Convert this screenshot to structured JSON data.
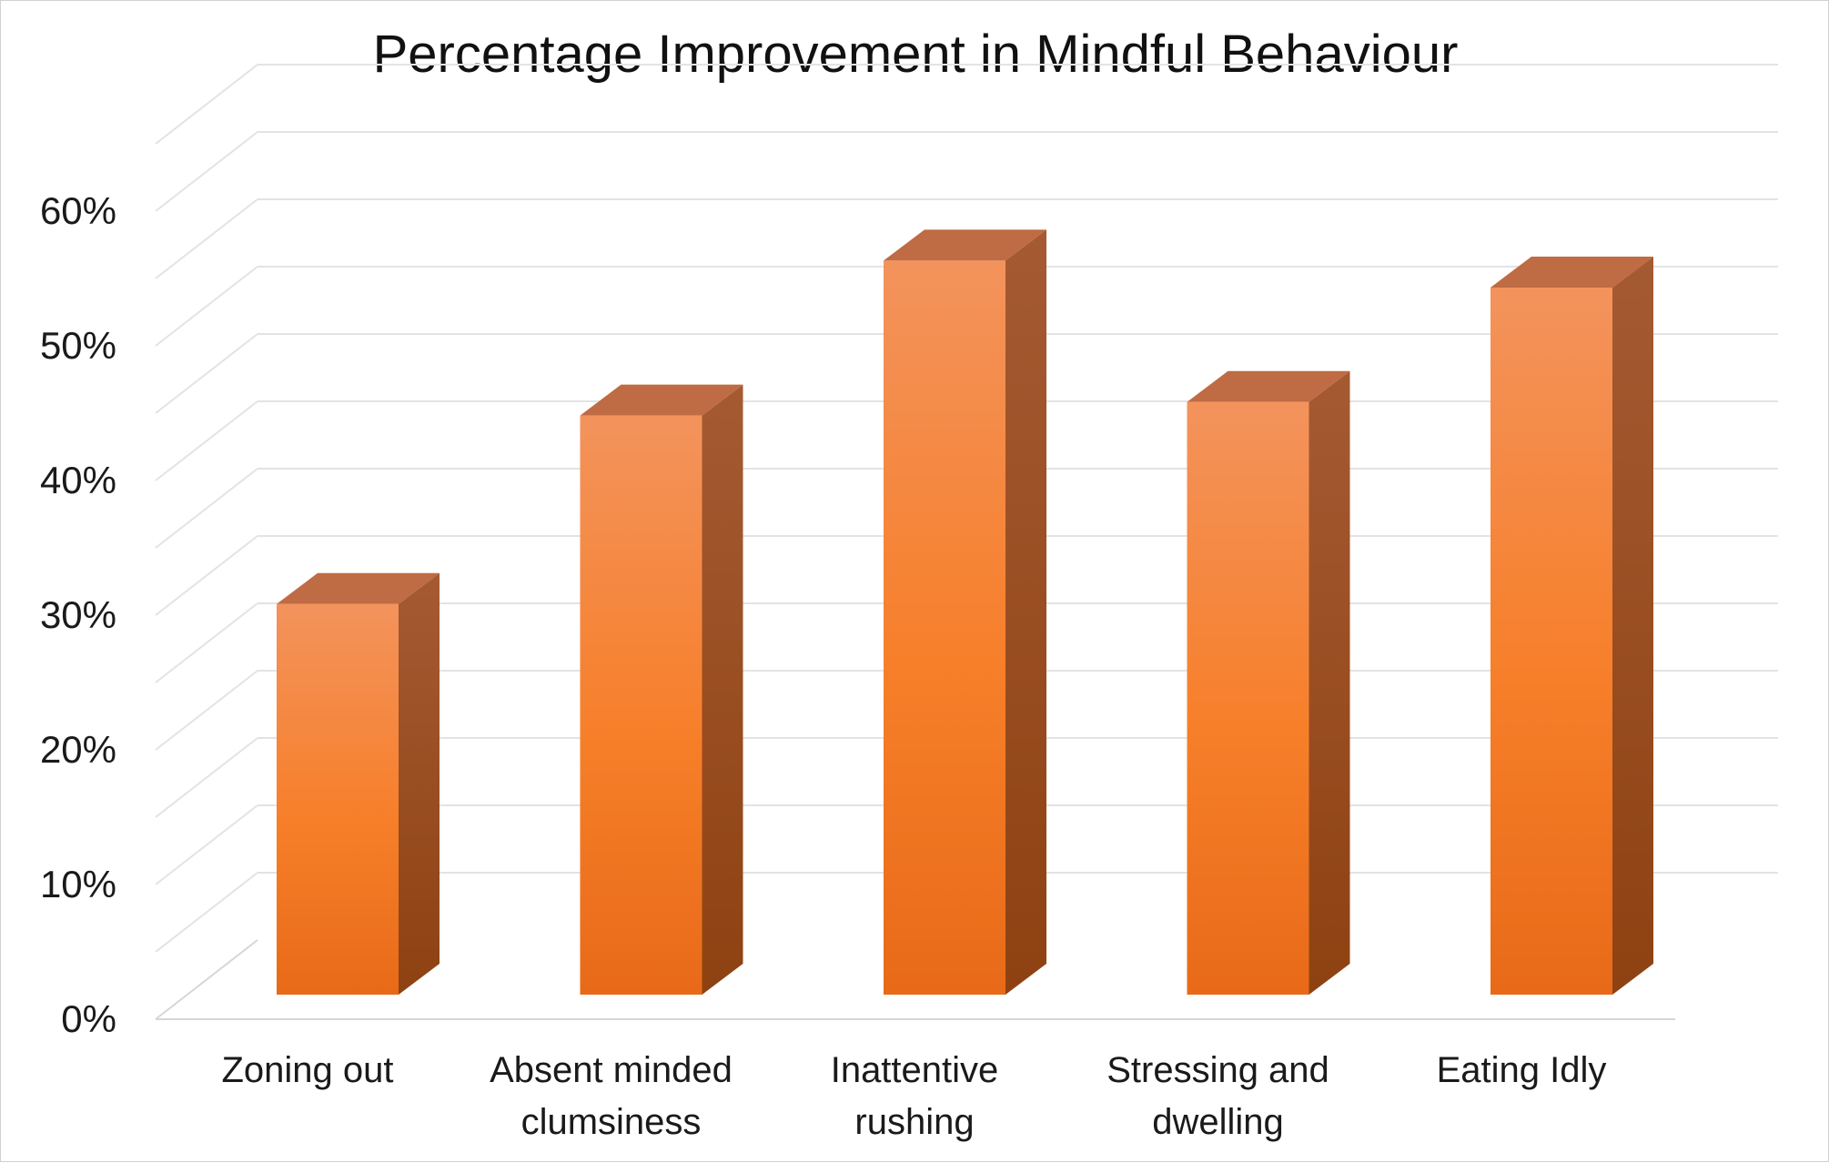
{
  "chart_data": {
    "type": "bar",
    "title": "Percentage Improvement in Mindful Behaviour",
    "xlabel": "",
    "ylabel": "",
    "categories": [
      [
        "Zoning out"
      ],
      [
        "Absent minded",
        "clumsiness"
      ],
      [
        "Inattentive",
        "rushing"
      ],
      [
        "Stressing and",
        "dwelling"
      ],
      [
        "Eating Idly"
      ]
    ],
    "values": [
      0.29,
      0.43,
      0.545,
      0.44,
      0.525
    ],
    "ylim": [
      0,
      0.6
    ],
    "yticks": [
      "0%",
      "10%",
      "20%",
      "30%",
      "40%",
      "50%",
      "60%"
    ],
    "grid": true,
    "legend": "none",
    "style": "3d-column",
    "colors": {
      "front_top": "#f3935c",
      "front_mid": "#f77f2a",
      "front_bottom": "#e86a18",
      "side_top": "#a55a32",
      "side_bottom": "#8e4212",
      "top_face": "#bf6b43"
    }
  }
}
